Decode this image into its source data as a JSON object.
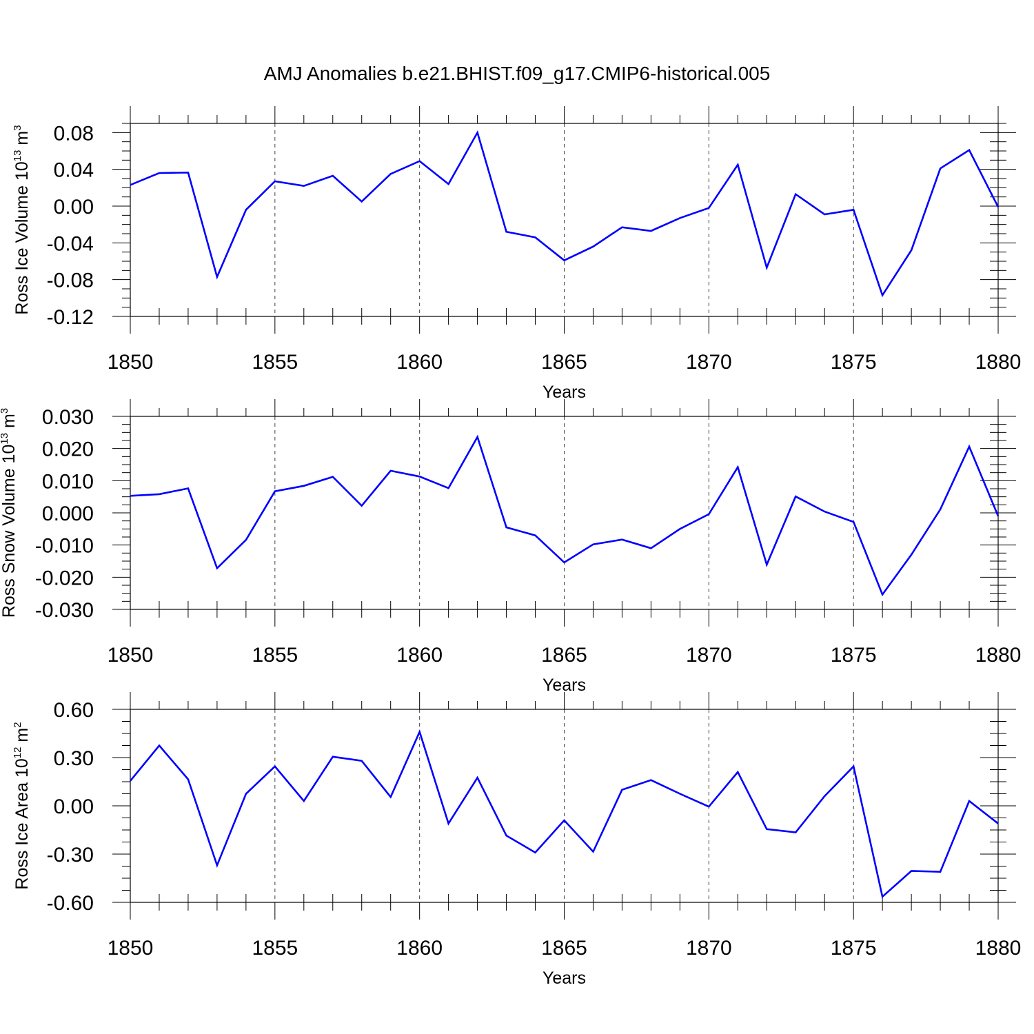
{
  "title": "AMJ Anomalies b.e21.BHIST.f09_g17.CMIP6-historical.005",
  "colors": {
    "line": "#0000ff",
    "axis": "#000000",
    "background": "#ffffff"
  },
  "chart_data": [
    {
      "type": "line",
      "ylabel_main": "Ross Ice Volume 10",
      "ylabel_exp": "13",
      "ylabel_unit": " m",
      "ylabel_unit_exp": "3",
      "xlabel": "Years",
      "xlim": [
        1850,
        1880
      ],
      "ylim": [
        -0.12,
        0.09
      ],
      "grid": "vertical dashed at major x ticks",
      "x_ticks": [
        "1850",
        "1855",
        "1860",
        "1865",
        "1870",
        "1875",
        "1880"
      ],
      "y_ticks": [
        "0.08",
        "0.04",
        "0.00",
        "-0.04",
        "-0.08",
        "-0.12"
      ],
      "x": [
        1850,
        1851,
        1852,
        1853,
        1854,
        1855,
        1856,
        1857,
        1858,
        1859,
        1860,
        1861,
        1862,
        1863,
        1864,
        1865,
        1866,
        1867,
        1868,
        1869,
        1870,
        1871,
        1872,
        1873,
        1874,
        1875,
        1876,
        1877,
        1878,
        1879,
        1880
      ],
      "series": [
        {
          "values": [
            0.023,
            0.036,
            0.0365,
            -0.077,
            -0.004,
            0.027,
            0.022,
            0.033,
            0.005,
            0.035,
            0.049,
            0.024,
            0.08,
            -0.028,
            -0.034,
            -0.059,
            -0.044,
            -0.023,
            -0.027,
            -0.013,
            -0.002,
            0.045,
            -0.067,
            0.013,
            -0.009,
            -0.004,
            -0.097,
            -0.048,
            0.041,
            0.061,
            -0.001
          ]
        }
      ]
    },
    {
      "type": "line",
      "ylabel_main": "Ross Snow Volume 10",
      "ylabel_exp": "13",
      "ylabel_unit": " m",
      "ylabel_unit_exp": "3",
      "xlabel": "Years",
      "xlim": [
        1850,
        1880
      ],
      "ylim": [
        -0.03,
        0.03
      ],
      "grid": "vertical dashed at major x ticks",
      "x_ticks": [
        "1850",
        "1855",
        "1860",
        "1865",
        "1870",
        "1875",
        "1880"
      ],
      "y_ticks": [
        "0.030",
        "0.020",
        "0.010",
        "0.000",
        "-0.010",
        "-0.020",
        "-0.030"
      ],
      "x": [
        1850,
        1851,
        1852,
        1853,
        1854,
        1855,
        1856,
        1857,
        1858,
        1859,
        1860,
        1861,
        1862,
        1863,
        1864,
        1865,
        1866,
        1867,
        1868,
        1869,
        1870,
        1871,
        1872,
        1873,
        1874,
        1875,
        1876,
        1877,
        1878,
        1879,
        1880
      ],
      "series": [
        {
          "values": [
            0.0053,
            0.0058,
            0.0076,
            -0.0172,
            -0.0084,
            0.0067,
            0.0084,
            0.0112,
            0.0022,
            0.0131,
            0.0113,
            0.0077,
            0.0236,
            -0.0045,
            -0.007,
            -0.0154,
            -0.0098,
            -0.0083,
            -0.011,
            -0.005,
            -0.0004,
            0.0142,
            -0.0161,
            0.0051,
            0.0004,
            -0.0028,
            -0.0254,
            -0.013,
            0.0011,
            0.0206,
            -0.001
          ]
        }
      ]
    },
    {
      "type": "line",
      "ylabel_main": "Ross Ice Area 10",
      "ylabel_exp": "12",
      "ylabel_unit": " m",
      "ylabel_unit_exp": "2",
      "xlabel": "Years",
      "xlim": [
        1850,
        1880
      ],
      "ylim": [
        -0.6,
        0.6
      ],
      "grid": "vertical dashed at major x ticks",
      "x_ticks": [
        "1850",
        "1855",
        "1860",
        "1865",
        "1870",
        "1875",
        "1880"
      ],
      "y_ticks": [
        "0.60",
        "0.30",
        "0.00",
        "-0.30",
        "-0.60"
      ],
      "x": [
        1850,
        1851,
        1852,
        1853,
        1854,
        1855,
        1856,
        1857,
        1858,
        1859,
        1860,
        1861,
        1862,
        1863,
        1864,
        1865,
        1866,
        1867,
        1868,
        1869,
        1870,
        1871,
        1872,
        1873,
        1874,
        1875,
        1876,
        1877,
        1878,
        1879,
        1880
      ],
      "series": [
        {
          "values": [
            0.155,
            0.375,
            0.165,
            -0.37,
            0.075,
            0.245,
            0.03,
            0.305,
            0.28,
            0.055,
            0.46,
            -0.11,
            0.175,
            -0.185,
            -0.29,
            -0.09,
            -0.285,
            0.1,
            0.16,
            0.075,
            -0.005,
            0.21,
            -0.145,
            -0.165,
            0.06,
            0.245,
            -0.565,
            -0.405,
            -0.41,
            0.03,
            -0.11
          ]
        }
      ]
    }
  ]
}
